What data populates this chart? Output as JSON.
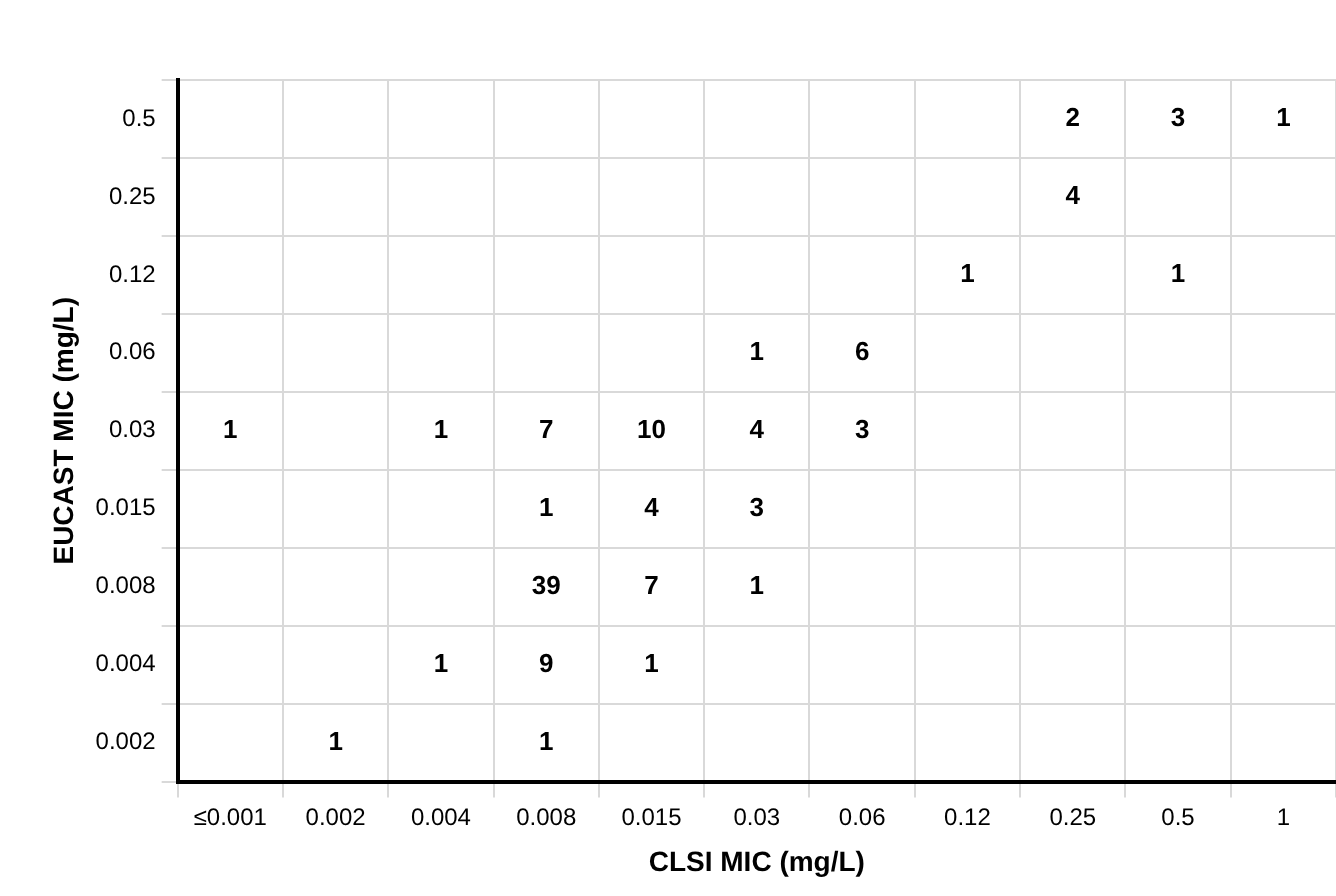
{
  "chart_data": {
    "type": "heatmap",
    "xlabel": "CLSI MIC (mg/L)",
    "ylabel": "EUCAST MIC (mg/L)",
    "categories": [
      "≤0.001",
      "0.002",
      "0.004",
      "0.008",
      "0.015",
      "0.03",
      "0.06",
      "0.12",
      "0.25",
      "0.5",
      "1"
    ],
    "y_categories": [
      "0.5",
      "0.25",
      "0.12",
      "0.06",
      "0.03",
      "0.015",
      "0.008",
      "0.004",
      "0.002"
    ],
    "cells": [
      [
        null,
        null,
        null,
        null,
        null,
        null,
        null,
        null,
        2,
        3,
        1
      ],
      [
        null,
        null,
        null,
        null,
        null,
        null,
        null,
        null,
        4,
        null,
        null
      ],
      [
        null,
        null,
        null,
        null,
        null,
        null,
        null,
        1,
        null,
        1,
        null
      ],
      [
        null,
        null,
        null,
        null,
        null,
        1,
        6,
        null,
        null,
        null,
        null
      ],
      [
        1,
        null,
        1,
        7,
        10,
        4,
        3,
        null,
        null,
        null,
        null
      ],
      [
        null,
        null,
        null,
        1,
        4,
        3,
        null,
        null,
        null,
        null,
        null
      ],
      [
        null,
        null,
        null,
        39,
        7,
        1,
        null,
        null,
        null,
        null,
        null
      ],
      [
        null,
        null,
        1,
        9,
        1,
        null,
        null,
        null,
        null,
        null,
        null
      ],
      [
        null,
        1,
        null,
        1,
        null,
        null,
        null,
        null,
        null,
        null,
        null
      ]
    ],
    "grid": true,
    "data_labels": true
  }
}
